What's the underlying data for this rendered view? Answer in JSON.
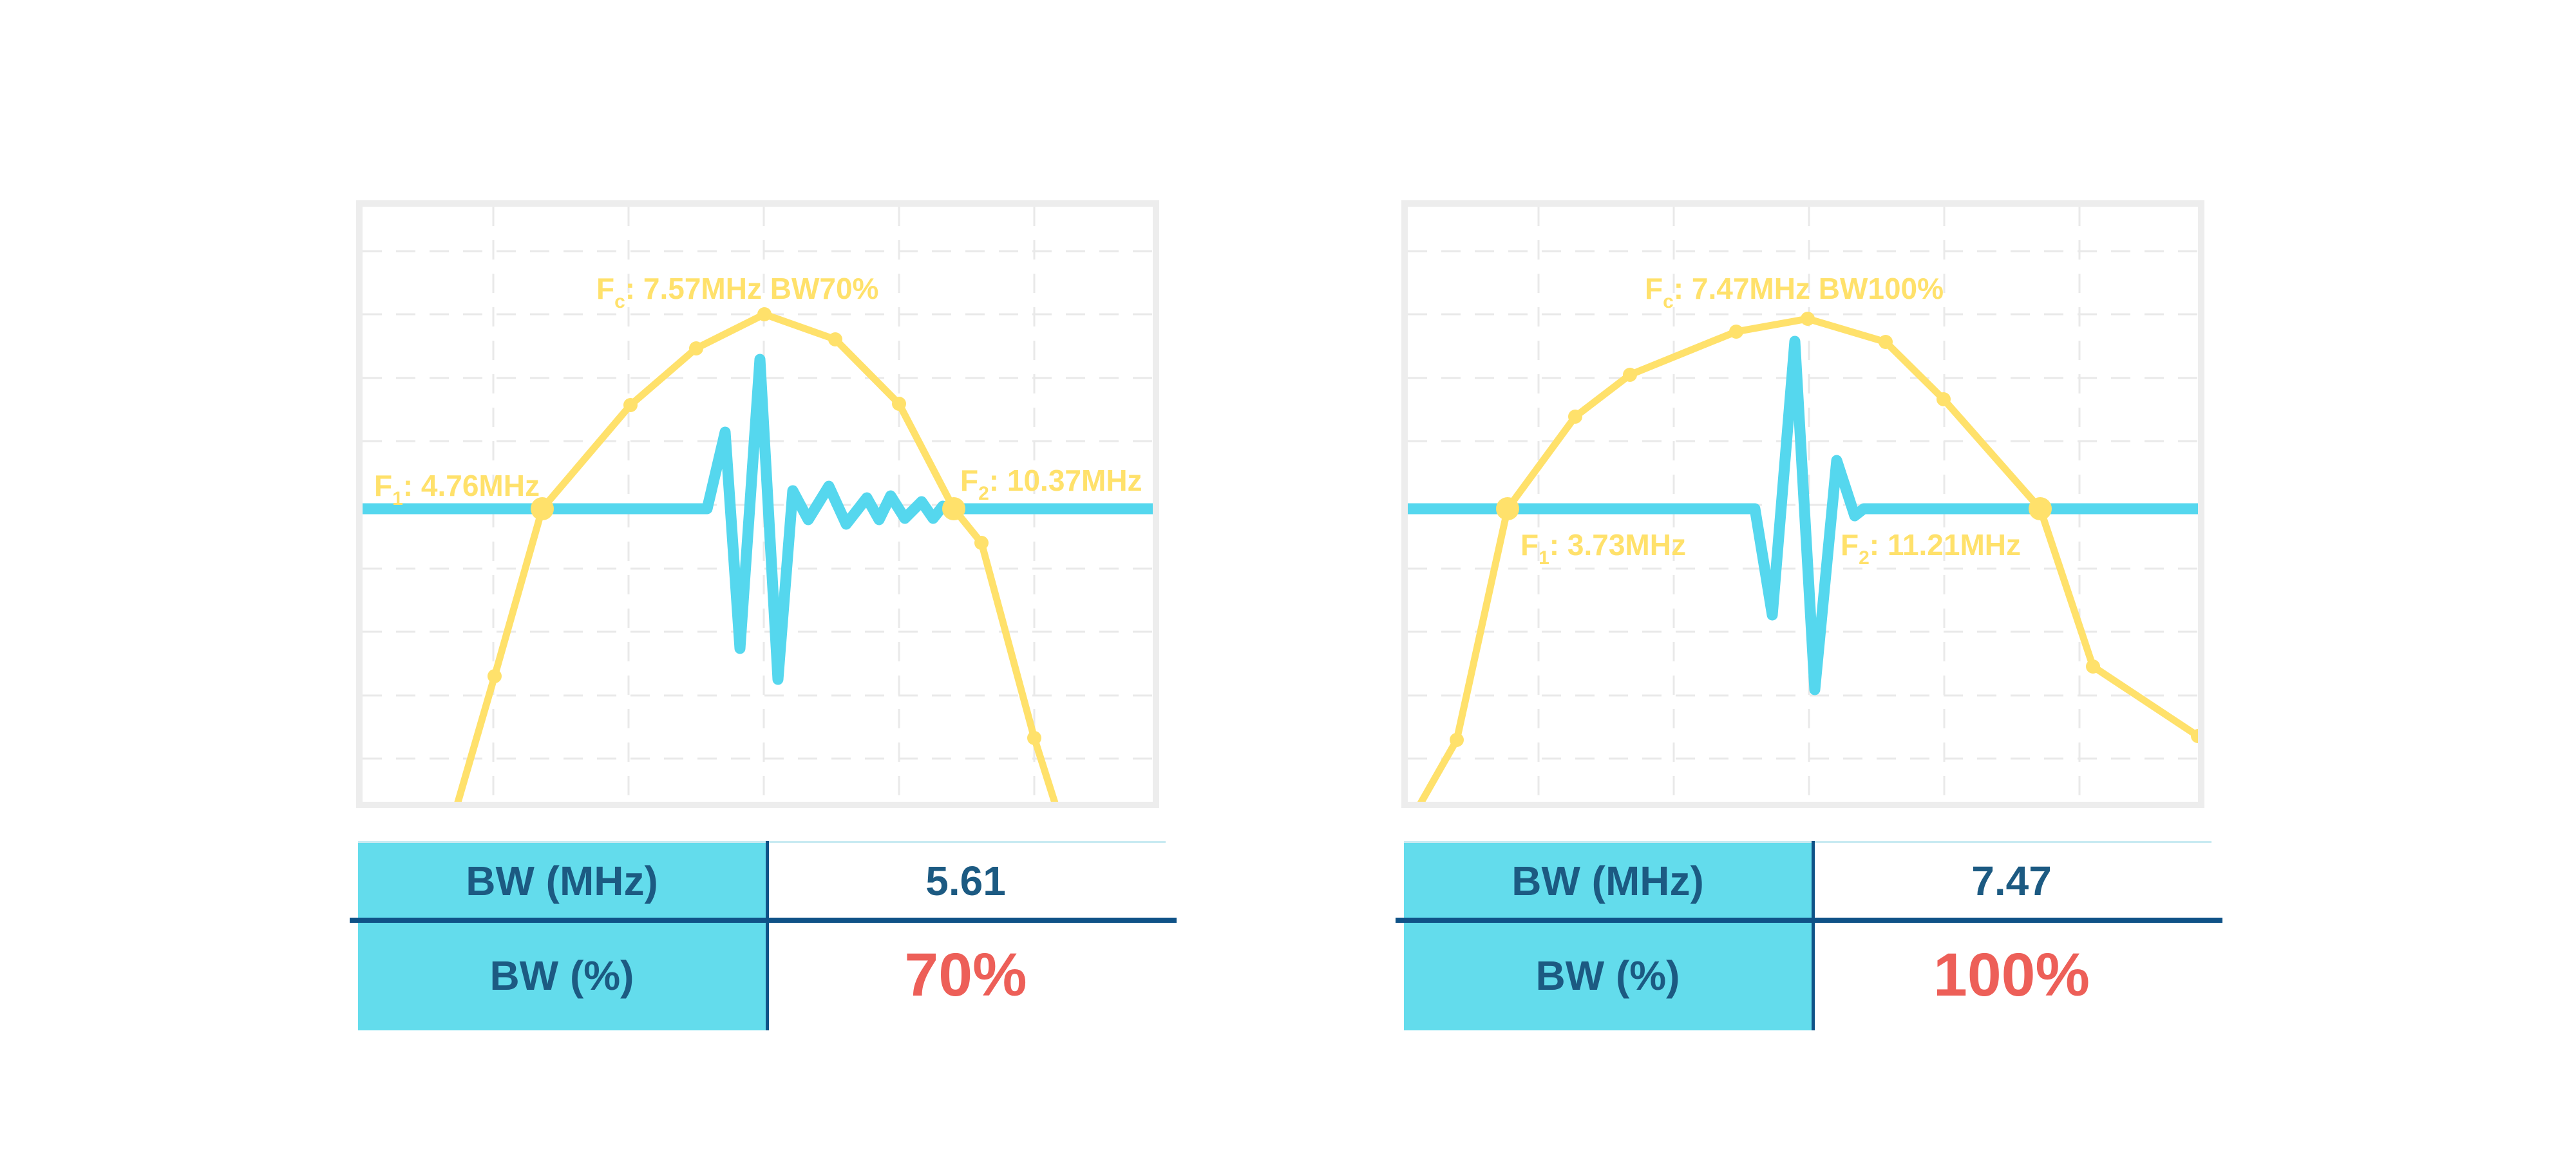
{
  "page": {
    "background": "#ffffff"
  },
  "colors": {
    "spectrum_yellow": "#FFE16B",
    "pulse_cyan": "#55D7EE",
    "panel_border": "#EDEDED",
    "grid": "#E9E9E9",
    "table_header_cyan": "#63DCEC",
    "navy_text": "#1C5A82",
    "navy_rule": "#0F5287",
    "red_emphasis": "#ED5F58",
    "table_topline": "#C9EAF2"
  },
  "chart_data": [
    {
      "type": "line",
      "title": "",
      "xlabel": "",
      "ylabel": "",
      "grid_on": true,
      "fc_mhz": 7.57,
      "f1_mhz": 4.76,
      "f2_mhz": 10.37,
      "bw_mhz": 5.61,
      "bw_percent": 70,
      "annotations": {
        "fc": {
          "prefix": "F",
          "sub": "c",
          "rest": ": 7.57MHz BW70%"
        },
        "f1": {
          "prefix": "F",
          "sub": "1",
          "rest": ": 4.76MHz"
        },
        "f2": {
          "prefix": "F",
          "sub": "2",
          "rest": ": 10.37MHz"
        }
      },
      "view": [
        1227,
        924
      ],
      "grid": {
        "vx": [
          203,
          413,
          623,
          833,
          1043
        ],
        "hy": [
          69,
          167,
          266,
          364,
          463,
          562,
          660,
          759,
          857
        ]
      },
      "series": [
        {
          "name": "transducer-frequency-spectrum",
          "color": "#FFE16B",
          "points": [
            [
              145,
              935
            ],
            [
              205,
              729
            ],
            [
              279,
              469
            ],
            [
              416,
              308
            ],
            [
              518,
              220
            ],
            [
              624,
              167
            ],
            [
              734,
              206
            ],
            [
              833,
              306
            ],
            [
              918,
              469
            ],
            [
              961,
              522
            ],
            [
              1043,
              825
            ],
            [
              1078,
              935
            ]
          ],
          "markers": [
            [
              205,
              729
            ],
            [
              416,
              308
            ],
            [
              518,
              220
            ],
            [
              624,
              167
            ],
            [
              734,
              206
            ],
            [
              833,
              306
            ],
            [
              961,
              522
            ],
            [
              1043,
              825
            ]
          ],
          "crossing_markers": [
            [
              279,
              469
            ],
            [
              918,
              469
            ]
          ]
        },
        {
          "name": "pulse-echo-waveform",
          "color": "#55D7EE",
          "points": [
            [
              0,
              469
            ],
            [
              535,
              469
            ],
            [
              563,
              350
            ],
            [
              586,
              686
            ],
            [
              617,
              237
            ],
            [
              645,
              734
            ],
            [
              668,
              441
            ],
            [
              692,
              486
            ],
            [
              724,
              434
            ],
            [
              751,
              493
            ],
            [
              783,
              452
            ],
            [
              802,
              486
            ],
            [
              820,
              449
            ],
            [
              842,
              484
            ],
            [
              868,
              458
            ],
            [
              886,
              484
            ],
            [
              901,
              465
            ],
            [
              915,
              469
            ],
            [
              1227,
              469
            ]
          ]
        }
      ]
    },
    {
      "type": "line",
      "title": "",
      "xlabel": "",
      "ylabel": "",
      "grid_on": true,
      "fc_mhz": 7.47,
      "f1_mhz": 3.73,
      "f2_mhz": 11.21,
      "bw_mhz": 7.47,
      "bw_percent": 100,
      "annotations": {
        "fc": {
          "prefix": "F",
          "sub": "c",
          "rest": ": 7.47MHz BW100%"
        },
        "f1": {
          "prefix": "F",
          "sub": "1",
          "rest": ": 3.73MHz"
        },
        "f2": {
          "prefix": "F",
          "sub": "2",
          "rest": ": 11.21MHz"
        }
      },
      "view": [
        1227,
        924
      ],
      "grid": {
        "vx": [
          203,
          413,
          623,
          833,
          1043
        ],
        "hy": [
          69,
          167,
          266,
          364,
          463,
          562,
          660,
          759,
          857
        ]
      },
      "series": [
        {
          "name": "transducer-frequency-spectrum",
          "color": "#FFE16B",
          "points": [
            [
              15,
              935
            ],
            [
              76,
              828
            ],
            [
              155,
              469
            ],
            [
              260,
              326
            ],
            [
              345,
              261
            ],
            [
              510,
              194
            ],
            [
              621,
              174
            ],
            [
              742,
              210
            ],
            [
              832,
              299
            ],
            [
              982,
              469
            ],
            [
              1064,
              714
            ],
            [
              1227,
              822
            ]
          ],
          "markers": [
            [
              76,
              828
            ],
            [
              260,
              326
            ],
            [
              345,
              261
            ],
            [
              510,
              194
            ],
            [
              621,
              174
            ],
            [
              742,
              210
            ],
            [
              832,
              299
            ],
            [
              1064,
              714
            ],
            [
              1227,
              822
            ]
          ],
          "crossing_markers": [
            [
              155,
              469
            ],
            [
              982,
              469
            ]
          ]
        },
        {
          "name": "pulse-echo-waveform",
          "color": "#55D7EE",
          "points": [
            [
              0,
              469
            ],
            [
              539,
              469
            ],
            [
              566,
              634
            ],
            [
              601,
              209
            ],
            [
              632,
              750
            ],
            [
              666,
              394
            ],
            [
              694,
              480
            ],
            [
              708,
              469
            ],
            [
              1227,
              469
            ]
          ]
        }
      ]
    }
  ],
  "tables": [
    {
      "rows": [
        {
          "label": "BW (MHz)",
          "value": "5.61",
          "emphasis": false
        },
        {
          "label": "BW (%)",
          "value": "70%",
          "emphasis": true
        }
      ]
    },
    {
      "rows": [
        {
          "label": "BW (MHz)",
          "value": "7.47",
          "emphasis": false
        },
        {
          "label": "BW (%)",
          "value": "100%",
          "emphasis": true
        }
      ]
    }
  ]
}
